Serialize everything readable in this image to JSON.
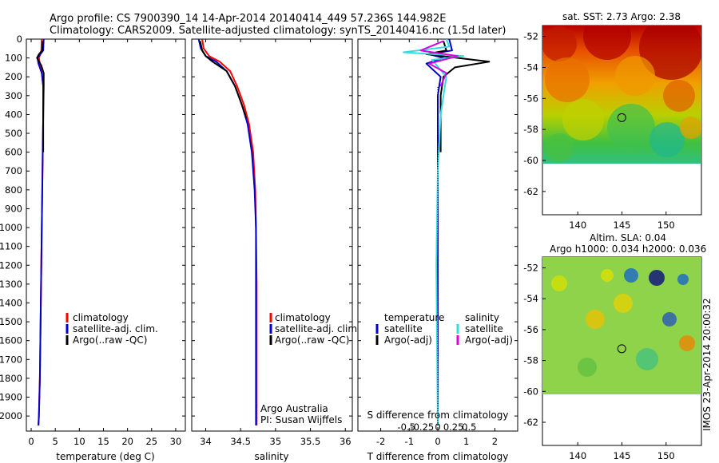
{
  "header": {
    "line1": "Argo profile: CS 7900390_14 14-Apr-2014 20140414_449 57.236S 144.982E",
    "line2": "Climatology: CARS2009. Satellite-adjusted climatology: synTS_20140416.nc (1.5d later)"
  },
  "colors": {
    "climatology": "#ff0000",
    "satellite": "#0000cc",
    "argo": "#000000",
    "sal_satellite": "#33dddd",
    "sal_argo": "#dd00dd"
  },
  "chart_data": [
    {
      "type": "line",
      "xlabel": "temperature (deg C)",
      "ylabel": "",
      "xlim": [
        -1,
        32
      ],
      "ylim": [
        2080,
        0
      ],
      "xticks": [
        0,
        5,
        10,
        15,
        20,
        25,
        30
      ],
      "yticks": [
        0,
        100,
        200,
        300,
        400,
        500,
        600,
        700,
        800,
        900,
        1000,
        1100,
        1200,
        1300,
        1400,
        1500,
        1600,
        1700,
        1800,
        1900,
        2000
      ],
      "legend": [
        "climatology",
        "satellite-adj. clim.",
        "Argo(..raw -QC)"
      ],
      "series": [
        {
          "name": "climatology",
          "color": "#ff0000",
          "x": [
            2.2,
            2.1,
            1.9,
            1.6,
            1.8,
            2.2,
            2.5,
            2.5,
            2.4,
            2.3,
            2.2,
            2.1,
            2.0,
            1.9,
            1.8,
            1.7,
            1.6,
            1.5
          ],
          "y": [
            0,
            60,
            80,
            100,
            130,
            180,
            250,
            400,
            600,
            800,
            1000,
            1200,
            1400,
            1600,
            1800,
            1900,
            2000,
            2050
          ]
        },
        {
          "name": "satellite-adj. clim.",
          "color": "#0000cc",
          "x": [
            2.6,
            2.5,
            1.9,
            1.3,
            1.5,
            2.2,
            2.5,
            2.5,
            2.4,
            2.3,
            2.2,
            2.1,
            2.0,
            1.9,
            1.8,
            1.7,
            1.6,
            1.5
          ],
          "y": [
            0,
            60,
            80,
            100,
            130,
            180,
            250,
            400,
            600,
            800,
            1000,
            1200,
            1400,
            1600,
            1800,
            1900,
            2000,
            2050
          ]
        },
        {
          "name": "Argo(..raw -QC)",
          "color": "#000000",
          "x": [
            2.4,
            2.3,
            1.6,
            1.2,
            2.1,
            2.6,
            2.6,
            2.5,
            2.5,
            2.5
          ],
          "y": [
            10,
            60,
            80,
            100,
            140,
            180,
            250,
            400,
            500,
            600
          ]
        }
      ]
    },
    {
      "type": "line",
      "xlabel": "salinity",
      "ylabel": "",
      "xlim": [
        33.8,
        36.1
      ],
      "ylim": [
        2080,
        0
      ],
      "xticks": [
        34,
        34.5,
        35,
        35.5,
        36
      ],
      "legend": [
        "climatology",
        "satellite-adj. clim.",
        "Argo(..raw -QC)"
      ],
      "annotation": [
        "Argo Australia",
        "PI: Susan Wijffels"
      ],
      "series": [
        {
          "name": "climatology",
          "color": "#ff0000",
          "x": [
            33.95,
            33.97,
            34.05,
            34.2,
            34.35,
            34.45,
            34.55,
            34.62,
            34.68,
            34.71,
            34.72,
            34.73,
            34.73,
            34.73,
            34.73
          ],
          "y": [
            0,
            50,
            90,
            120,
            170,
            250,
            350,
            450,
            600,
            800,
            1000,
            1300,
            1600,
            1900,
            2050
          ]
        },
        {
          "name": "satellite-adj. clim.",
          "color": "#0000cc",
          "x": [
            33.9,
            33.93,
            34.0,
            34.15,
            34.3,
            34.42,
            34.52,
            34.6,
            34.66,
            34.7,
            34.72,
            34.72,
            34.72,
            34.72,
            34.72
          ],
          "y": [
            0,
            50,
            90,
            120,
            170,
            250,
            350,
            450,
            600,
            800,
            1000,
            1300,
            1600,
            1900,
            2050
          ]
        },
        {
          "name": "Argo(..raw -QC)",
          "color": "#000000",
          "x": [
            33.92,
            33.95,
            34.0,
            34.1,
            34.3,
            34.42,
            34.52,
            34.58
          ],
          "y": [
            10,
            60,
            90,
            120,
            170,
            250,
            350,
            420
          ]
        }
      ]
    },
    {
      "type": "line",
      "xlabel": "T difference from climatology",
      "xlabel2": "S difference from climatology",
      "xlim": [
        -2.8,
        2.8
      ],
      "ylim": [
        2080,
        0
      ],
      "xticks": [
        -2,
        -1,
        0,
        1,
        2
      ],
      "xticks_salinity": [
        "-0.5",
        "-0.25",
        "0",
        "0.25",
        "0.5"
      ],
      "legend_temperature_title": "temperature",
      "legend_salinity_title": "salinity",
      "legend": [
        "satellite",
        "Argo(-adj)",
        "satellite",
        "Argo(-adj)"
      ],
      "series": [
        {
          "name": "satellite",
          "group": "temperature",
          "color": "#0000cc",
          "x": [
            0.4,
            0.5,
            -0.3,
            0.2,
            -0.4,
            0.1,
            0.0,
            0.0,
            0.0,
            0.0
          ],
          "y": [
            0,
            60,
            80,
            100,
            130,
            200,
            300,
            600,
            1200,
            2050
          ]
        },
        {
          "name": "Argo(-adj)",
          "group": "temperature",
          "color": "#000000",
          "x": [
            0.2,
            0.3,
            -0.4,
            1.8,
            0.6,
            0.2,
            0.1,
            0.1,
            0.1
          ],
          "y": [
            10,
            60,
            80,
            120,
            150,
            200,
            300,
            450,
            600
          ]
        },
        {
          "name": "satellite",
          "group": "salinity",
          "color": "#33dddd",
          "x": [
            0.3,
            0.4,
            -1.2,
            0.9,
            -0.2,
            0.3,
            0.1,
            0.0,
            -0.05,
            0.0
          ],
          "y": [
            0,
            40,
            70,
            90,
            110,
            200,
            400,
            700,
            1200,
            2050
          ]
        },
        {
          "name": "Argo(-adj)",
          "group": "salinity",
          "color": "#dd00dd",
          "x": [
            0.2,
            -0.6,
            0.7,
            -0.3,
            0.3,
            0.1
          ],
          "y": [
            10,
            60,
            90,
            130,
            180,
            250
          ]
        }
      ]
    },
    {
      "type": "heatmap",
      "title": "sat. SST: 2.73 Argo: 2.38",
      "xticks": [
        140,
        145,
        150
      ],
      "yticks": [
        -52,
        -54,
        -56,
        -58,
        -60,
        -62
      ],
      "xlim": [
        136,
        154
      ],
      "ylim": [
        -63.5,
        -51.3
      ],
      "marker": {
        "lon": 144.982,
        "lat": -57.236
      }
    },
    {
      "type": "heatmap",
      "title": "Altim. SLA: 0.04",
      "subtitle": "Argo h1000: 0.034 h2000: 0.036",
      "xticks": [
        140,
        145,
        150
      ],
      "yticks": [
        -52,
        -54,
        -56,
        -58,
        -60,
        -62
      ],
      "xlim": [
        136,
        154
      ],
      "ylim": [
        -63.5,
        -51.3
      ],
      "marker": {
        "lon": 144.982,
        "lat": -57.236
      }
    }
  ],
  "stamp": "IMOS 23-Apr-2014 20:00:32"
}
